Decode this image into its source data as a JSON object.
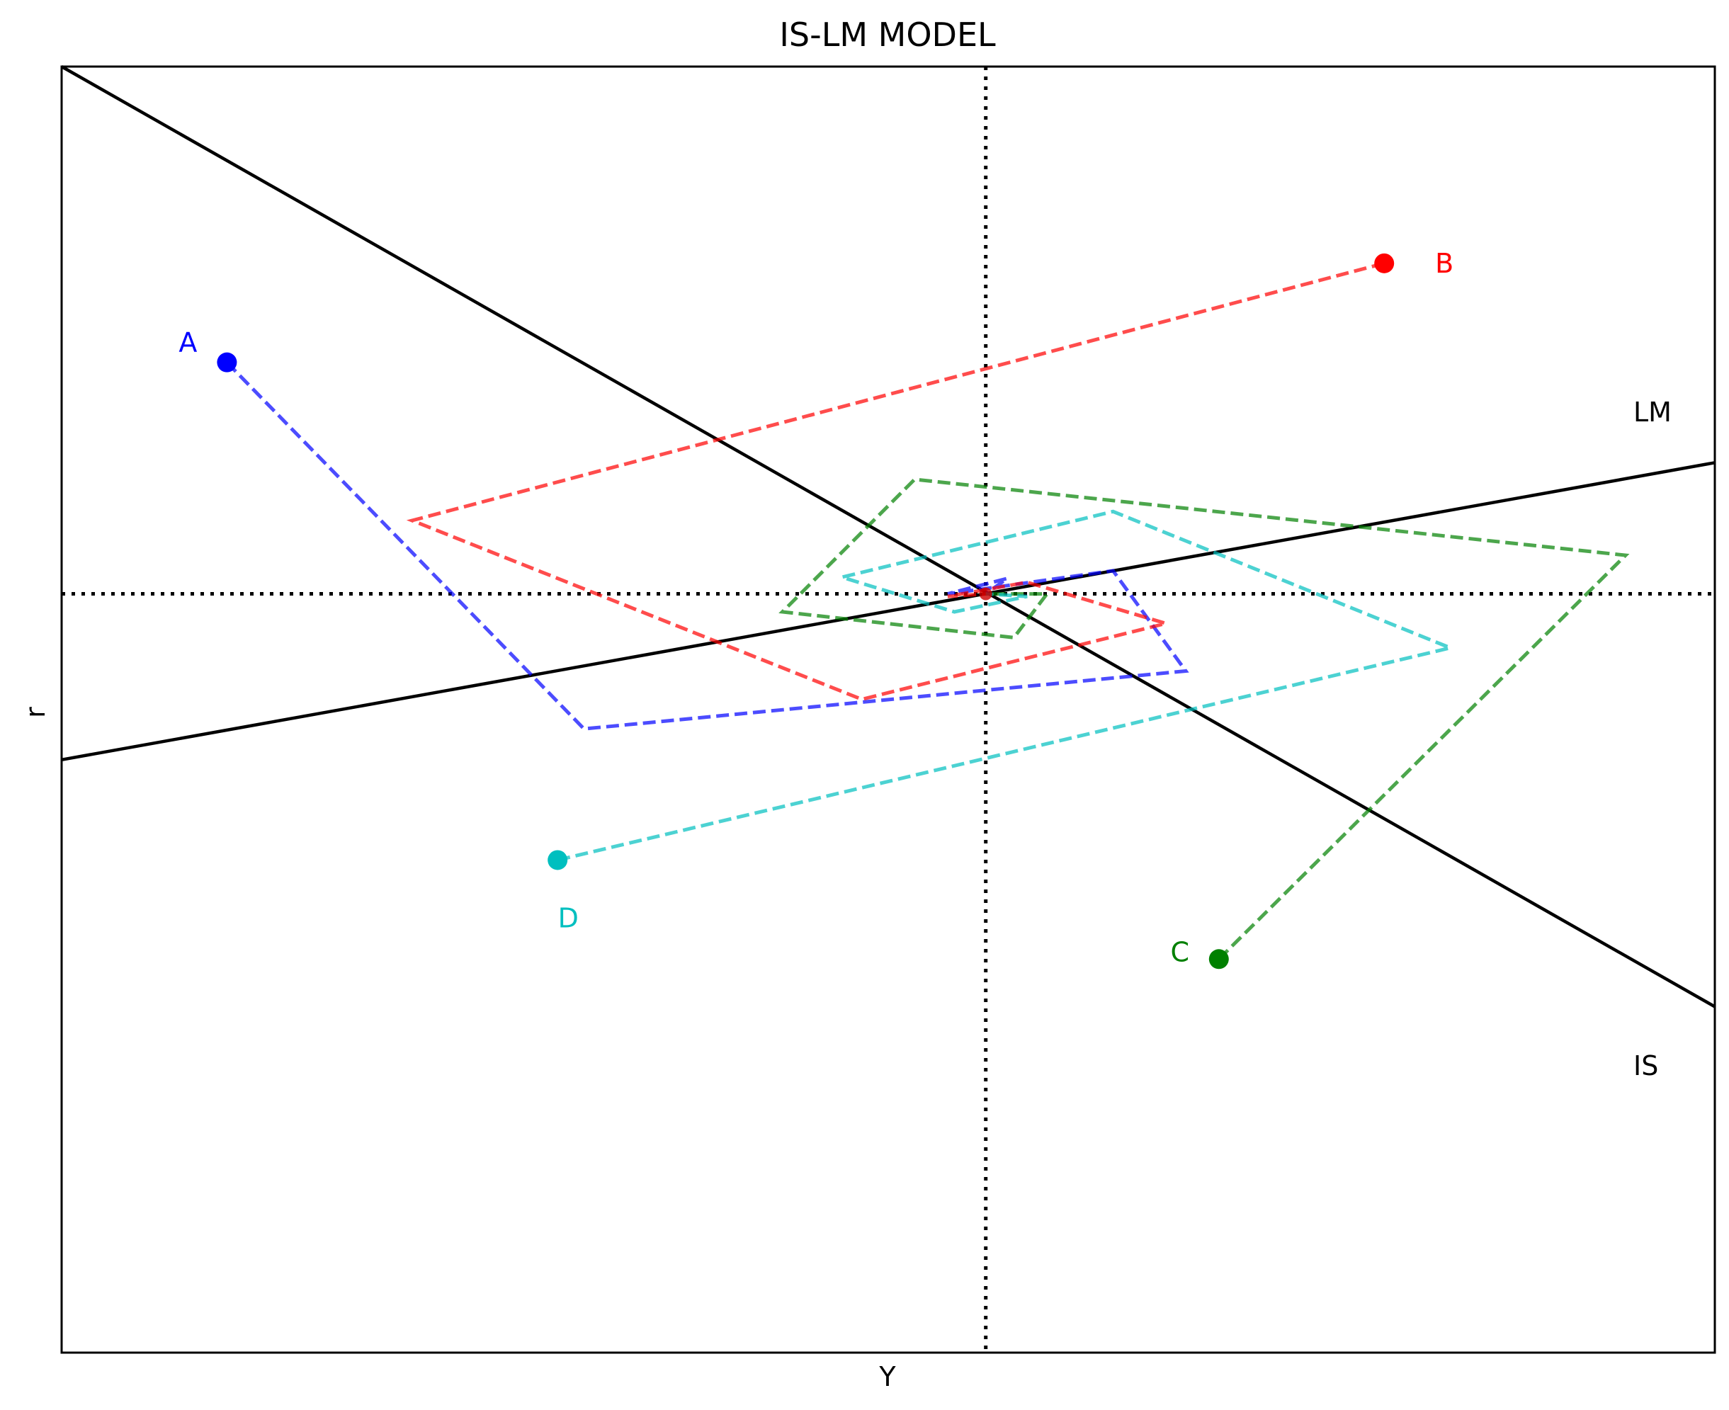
{
  "chart_data": {
    "type": "line",
    "title": "IS-LM MODEL",
    "xlabel": "Y",
    "ylabel": "r",
    "xlim": [
      0,
      10
    ],
    "ylim": [
      0,
      10
    ],
    "grid": false,
    "legend": "none",
    "ticks": "hidden",
    "reference_lines": {
      "vertical_x": 5.59,
      "horizontal_y": 5.9,
      "style": "dotted",
      "color": "#000000"
    },
    "curves": [
      {
        "name": "IS",
        "color": "#000000",
        "points": [
          [
            0.0,
            10.0
          ],
          [
            10.0,
            2.69
          ]
        ]
      },
      {
        "name": "LM",
        "color": "#000000",
        "points": [
          [
            0.0,
            4.61
          ],
          [
            10.0,
            6.92
          ]
        ]
      }
    ],
    "series": [
      {
        "name": "A",
        "color": "#0000ff",
        "points": [
          [
            1.0,
            7.7
          ],
          [
            3.16,
            4.85
          ],
          [
            6.8,
            5.3
          ],
          [
            6.36,
            6.08
          ],
          [
            5.36,
            5.9
          ],
          [
            5.72,
            6.02
          ],
          [
            5.59,
            5.9
          ]
        ]
      },
      {
        "name": "B",
        "color": "#ff0000",
        "points": [
          [
            8.0,
            8.47
          ],
          [
            2.12,
            6.47
          ],
          [
            4.84,
            5.08
          ],
          [
            6.68,
            5.67
          ],
          [
            5.84,
            5.99
          ],
          [
            5.36,
            5.88
          ],
          [
            5.59,
            5.9
          ]
        ]
      },
      {
        "name": "C",
        "color": "#008000",
        "points": [
          [
            7.0,
            3.06
          ],
          [
            9.46,
            6.2
          ],
          [
            5.16,
            6.79
          ],
          [
            4.36,
            5.76
          ],
          [
            5.76,
            5.56
          ],
          [
            5.96,
            5.9
          ],
          [
            5.59,
            5.9
          ]
        ]
      },
      {
        "name": "D",
        "color": "#00bfbf",
        "points": [
          [
            3.0,
            3.83
          ],
          [
            8.4,
            5.48
          ],
          [
            6.36,
            6.54
          ],
          [
            4.72,
            6.03
          ],
          [
            5.4,
            5.76
          ],
          [
            5.84,
            5.88
          ],
          [
            5.59,
            5.9
          ]
        ]
      }
    ]
  }
}
